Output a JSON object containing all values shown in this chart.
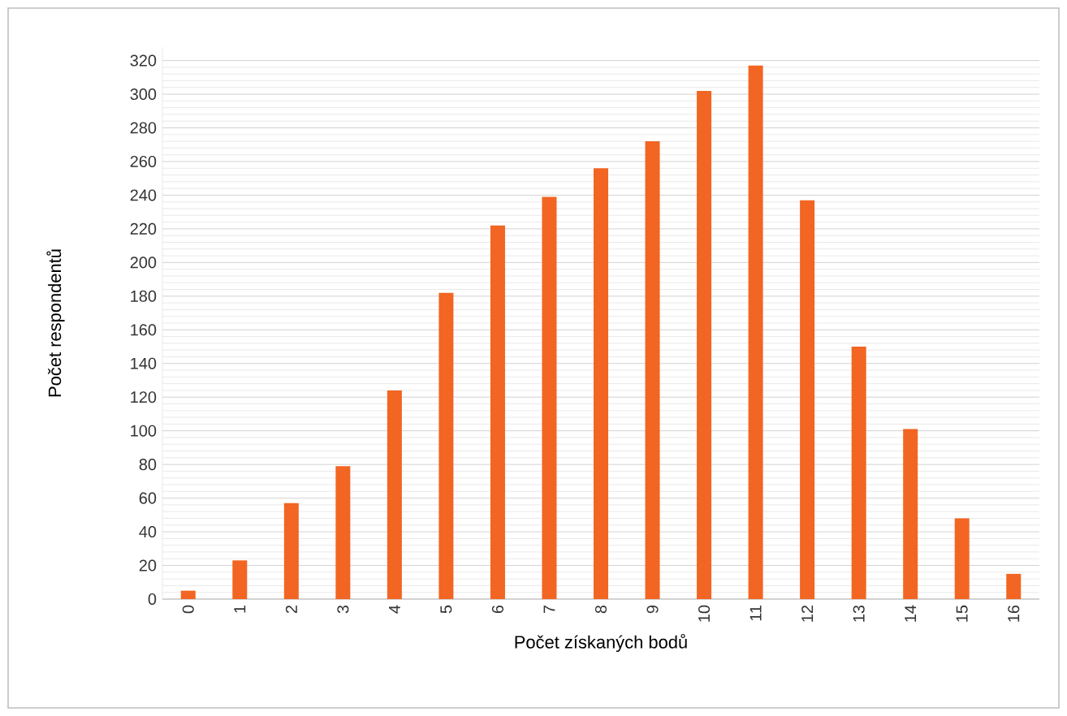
{
  "chart_data": {
    "type": "bar",
    "xlabel": "Počet získaných bodů",
    "ylabel": "Počet respondentů",
    "categories": [
      "0",
      "1",
      "2",
      "3",
      "4",
      "5",
      "6",
      "7",
      "8",
      "9",
      "10",
      "11",
      "12",
      "13",
      "14",
      "15",
      "16"
    ],
    "values": [
      5,
      23,
      57,
      79,
      124,
      182,
      222,
      239,
      256,
      272,
      302,
      317,
      237,
      150,
      101,
      48,
      15
    ],
    "color": "#f26522",
    "ylim": [
      0,
      328
    ],
    "yticks": [
      0,
      20,
      40,
      60,
      80,
      100,
      120,
      140,
      160,
      180,
      200,
      220,
      240,
      260,
      280,
      300,
      320
    ],
    "grid": "y"
  }
}
